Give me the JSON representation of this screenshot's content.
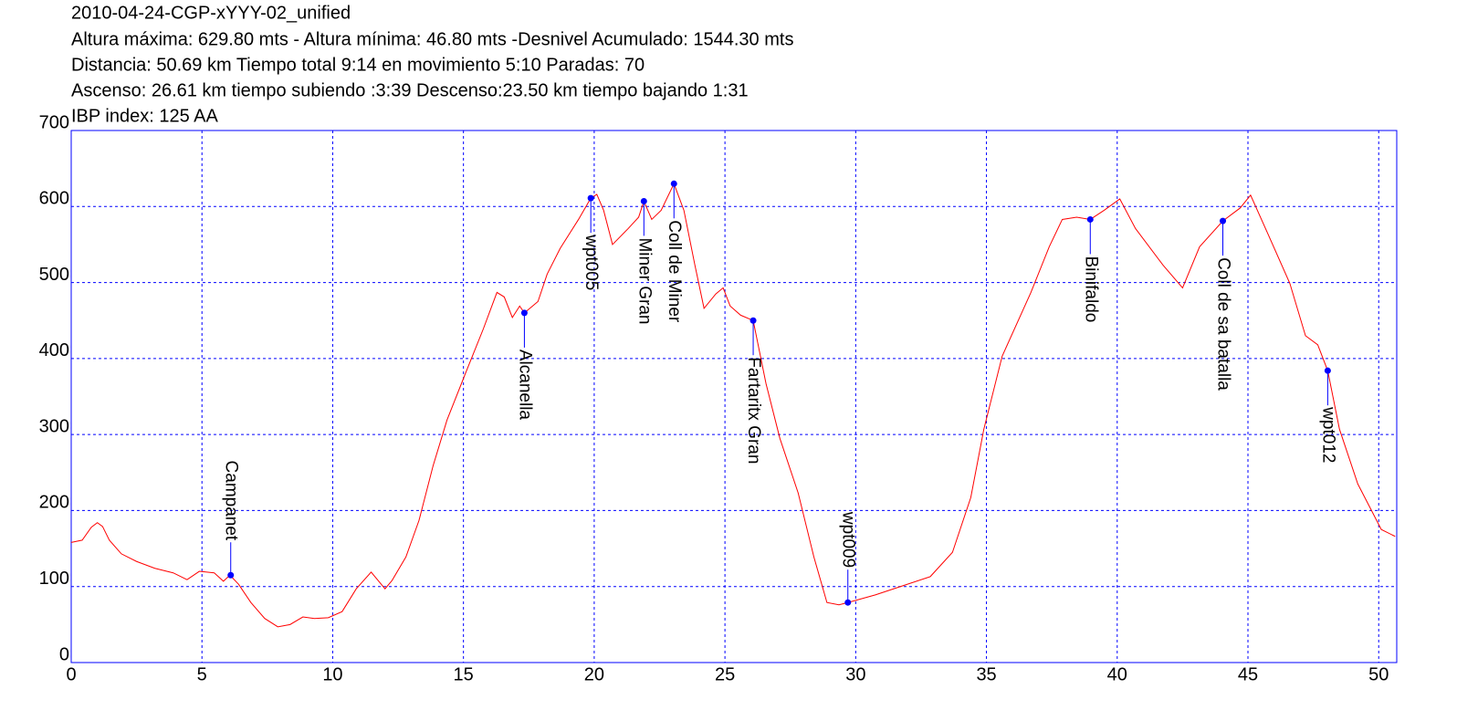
{
  "chart_data": {
    "type": "line",
    "title": "2010-04-24-CGP-xYYY-02_unified",
    "subtitle": [
      "Altura máxima: 629.80 mts - Altura mínima: 46.80 mts -Desnivel Acumulado: 1544.30 mts",
      "Distancia: 50.69 km  Tiempo total 9:14  en movimiento 5:10 Paradas: 70",
      "Ascenso: 26.61 km  tiempo subiendo :3:39  Descenso:23.50 km tiempo bajando 1:31",
      "IBP index: 125 AA"
    ],
    "x": [
      0,
      0.42,
      0.77,
      1.0,
      1.2,
      1.46,
      1.92,
      2.5,
      3.2,
      3.9,
      4.43,
      4.9,
      5.47,
      5.82,
      6.07,
      6.4,
      6.87,
      7.4,
      7.9,
      8.37,
      8.86,
      9.3,
      9.83,
      10.36,
      10.9,
      11.47,
      12.0,
      12.27,
      12.8,
      13.3,
      13.84,
      14.37,
      15.06,
      15.76,
      16.28,
      16.56,
      16.87,
      17.15,
      17.33,
      17.85,
      18.2,
      18.7,
      19.4,
      19.87,
      20.1,
      20.36,
      20.7,
      21.3,
      21.7,
      21.9,
      22.2,
      22.56,
      23.05,
      23.43,
      23.85,
      24.2,
      24.65,
      24.93,
      25.2,
      25.6,
      26.08,
      26.57,
      27.1,
      27.8,
      28.4,
      28.9,
      29.36,
      29.7,
      30.75,
      31.8,
      32.85,
      33.7,
      34.4,
      34.9,
      35.6,
      36.7,
      37.4,
      37.9,
      38.45,
      38.97,
      39.5,
      40.1,
      40.7,
      41.75,
      42.5,
      43.15,
      44.04,
      44.7,
      45.1,
      45.75,
      46.6,
      47.2,
      47.67,
      48.05,
      48.5,
      49.2,
      50.1,
      50.63
    ],
    "values": [
      158,
      161,
      178,
      184,
      179,
      161,
      143,
      133,
      124,
      118,
      109,
      120,
      118,
      107,
      115,
      103,
      79,
      58,
      47,
      50,
      60,
      58,
      59,
      67,
      97,
      119,
      97,
      108,
      139,
      187,
      259,
      319,
      379,
      439,
      487,
      481,
      454,
      469,
      460,
      475,
      511,
      545,
      583,
      611,
      616,
      595,
      550,
      571,
      586,
      607,
      583,
      595,
      630,
      595,
      523,
      466,
      485,
      493,
      469,
      457,
      450,
      367,
      295,
      223,
      139,
      79,
      76,
      79,
      89,
      101,
      113,
      145,
      217,
      307,
      403,
      487,
      547,
      583,
      586,
      583,
      595,
      610,
      571,
      523,
      493,
      547,
      581,
      598,
      615,
      565,
      499,
      430,
      418,
      384,
      307,
      235,
      175,
      166
    ],
    "color": "#ff0000",
    "waypoints": {
      "labels": [
        "Campanet",
        "Alcanella",
        "wpt005",
        "Miner Gran",
        "Coll de Miner",
        "Fartaritx Gran",
        "wpt009",
        "Binifaldo",
        "Coll de sa batalla",
        "wpt012"
      ],
      "x": [
        6.1,
        17.33,
        19.87,
        21.9,
        23.05,
        26.08,
        29.7,
        38.97,
        44.04,
        48.05
      ],
      "values": [
        115,
        460,
        611,
        607,
        630,
        450,
        79,
        583,
        581,
        384
      ],
      "color": "#0000ff"
    },
    "xlim": [
      0,
      50.69
    ],
    "ylim": [
      0,
      700
    ],
    "xticks": [
      0,
      5,
      10,
      15,
      20,
      25,
      30,
      35,
      40,
      45,
      50
    ],
    "yticks": [
      0,
      100,
      200,
      300,
      400,
      500,
      600,
      700
    ],
    "grid": true
  }
}
